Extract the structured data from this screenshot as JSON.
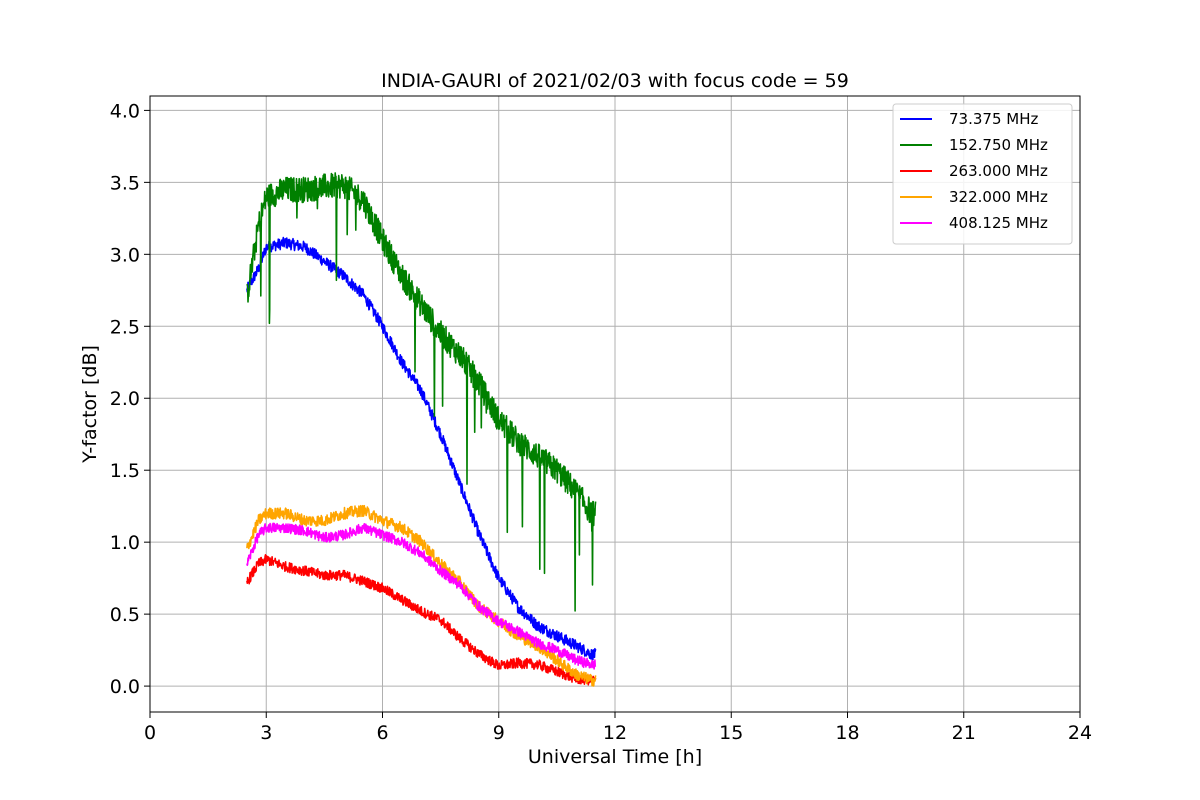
{
  "chart_data": {
    "type": "line",
    "title": "INDIA-GAURI of 2021/02/03 with focus code = 59",
    "xlabel": "Universal Time [h]",
    "ylabel": "Y-factor [dB]",
    "xlim": [
      0,
      24
    ],
    "ylim": [
      -0.18,
      4.1
    ],
    "xticks": [
      0,
      3,
      6,
      9,
      12,
      15,
      18,
      21,
      24
    ],
    "xtick_labels": [
      "0",
      "3",
      "6",
      "9",
      "12",
      "15",
      "18",
      "21",
      "24"
    ],
    "yticks": [
      0.0,
      0.5,
      1.0,
      1.5,
      2.0,
      2.5,
      3.0,
      3.5,
      4.0
    ],
    "ytick_labels": [
      "0.0",
      "0.5",
      "1.0",
      "1.5",
      "2.0",
      "2.5",
      "3.0",
      "3.5",
      "4.0"
    ],
    "grid": true,
    "legend_position": "top-right",
    "x_sample_range": [
      2.5,
      11.5
    ],
    "series": [
      {
        "name": "  73.375 MHz",
        "color": "#0000ff",
        "noise": 0.04,
        "x": [
          2.5,
          2.8,
          3.0,
          3.5,
          4.0,
          4.5,
          5.0,
          5.5,
          6.0,
          6.5,
          7.0,
          7.5,
          8.0,
          8.5,
          9.0,
          9.5,
          10.0,
          10.5,
          11.0,
          11.4
        ],
        "values": [
          2.75,
          2.9,
          3.05,
          3.08,
          3.05,
          2.95,
          2.85,
          2.72,
          2.5,
          2.25,
          2.05,
          1.75,
          1.4,
          1.05,
          0.75,
          0.55,
          0.42,
          0.35,
          0.28,
          0.22
        ]
      },
      {
        "name": "152.750 MHz",
        "color": "#008000",
        "noise": 0.09,
        "x": [
          2.5,
          2.8,
          3.0,
          3.5,
          4.0,
          4.5,
          5.0,
          5.5,
          6.0,
          6.5,
          7.0,
          7.5,
          8.0,
          8.5,
          9.0,
          9.5,
          10.0,
          10.5,
          11.0,
          11.4
        ],
        "values": [
          2.7,
          3.2,
          3.4,
          3.45,
          3.45,
          3.47,
          3.48,
          3.38,
          3.1,
          2.85,
          2.65,
          2.45,
          2.3,
          2.1,
          1.85,
          1.7,
          1.6,
          1.5,
          1.35,
          1.2
        ]
      },
      {
        "name": "263.000 MHz",
        "color": "#ff0000",
        "noise": 0.035,
        "x": [
          2.5,
          2.8,
          3.0,
          3.5,
          4.0,
          4.5,
          5.0,
          5.5,
          6.0,
          6.5,
          7.0,
          7.5,
          8.0,
          8.5,
          9.0,
          9.5,
          10.0,
          10.5,
          11.0,
          11.4
        ],
        "values": [
          0.72,
          0.85,
          0.88,
          0.83,
          0.8,
          0.77,
          0.77,
          0.73,
          0.68,
          0.6,
          0.52,
          0.46,
          0.33,
          0.22,
          0.14,
          0.16,
          0.15,
          0.1,
          0.05,
          0.04
        ]
      },
      {
        "name": "322.000 MHz",
        "color": "#ffa500",
        "noise": 0.04,
        "x": [
          2.5,
          2.8,
          3.0,
          3.5,
          4.0,
          4.5,
          5.0,
          5.5,
          6.0,
          6.5,
          7.0,
          7.5,
          8.0,
          8.5,
          9.0,
          9.5,
          10.0,
          10.5,
          11.0,
          11.4
        ],
        "values": [
          0.95,
          1.15,
          1.2,
          1.2,
          1.15,
          1.15,
          1.2,
          1.22,
          1.15,
          1.1,
          1.0,
          0.85,
          0.72,
          0.55,
          0.45,
          0.35,
          0.28,
          0.18,
          0.08,
          0.04
        ]
      },
      {
        "name": "408.125 MHz",
        "color": "#ff00ff",
        "noise": 0.035,
        "x": [
          2.5,
          2.8,
          3.0,
          3.5,
          4.0,
          4.5,
          5.0,
          5.5,
          6.0,
          6.5,
          7.0,
          7.5,
          8.0,
          8.5,
          9.0,
          9.5,
          10.0,
          10.5,
          11.0,
          11.4
        ],
        "values": [
          0.85,
          1.05,
          1.1,
          1.1,
          1.08,
          1.03,
          1.05,
          1.1,
          1.05,
          1.0,
          0.92,
          0.8,
          0.7,
          0.55,
          0.45,
          0.38,
          0.3,
          0.25,
          0.18,
          0.15
        ]
      }
    ]
  }
}
